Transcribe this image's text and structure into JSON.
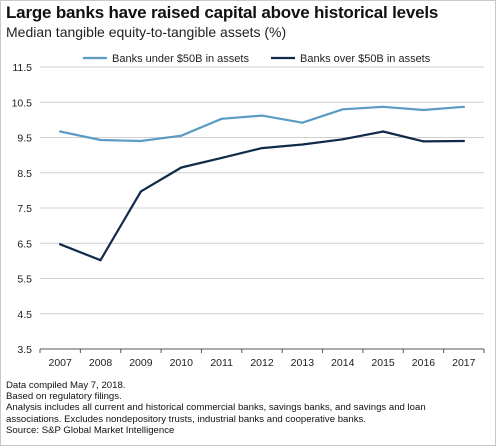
{
  "header": {
    "title": "Large banks have raised capital above historical levels",
    "subtitle": "Median tangible equity-to-tangible assets (%)"
  },
  "colors": {
    "under_50b": "#5b9bc4",
    "over_50b": "#0f2a4a",
    "grid": "#d0d0d0"
  },
  "chart_data": {
    "type": "line",
    "title": "",
    "xlabel": "",
    "ylabel": "",
    "x": [
      "2007",
      "2008",
      "2009",
      "2010",
      "2011",
      "2012",
      "2013",
      "2014",
      "2015",
      "2016",
      "2017"
    ],
    "y_ticks": [
      "11.5",
      "10.5",
      "9.5",
      "8.5",
      "7.5",
      "6.5",
      "5.5",
      "4.5",
      "3.5"
    ],
    "ylim": [
      3.5,
      11.5
    ],
    "grid": "horizontal",
    "legend_position": "top",
    "series": [
      {
        "name": "Banks under $50B in assets",
        "color": "#5b9bc4",
        "values": [
          9.67,
          9.43,
          9.4,
          9.55,
          10.03,
          10.12,
          9.92,
          10.3,
          10.37,
          10.28,
          10.37
        ]
      },
      {
        "name": "Banks over $50B in assets",
        "color": "#0f2a4a",
        "values": [
          6.47,
          6.02,
          7.97,
          8.65,
          8.92,
          9.2,
          9.3,
          9.45,
          9.67,
          9.39,
          9.4
        ]
      }
    ]
  },
  "notes": [
    "Data compiled May 7, 2018.",
    "Based on regulatory filings.",
    "Analysis includes all current and historical commercial banks, savings banks, and savings and loan",
    "associations. Excludes nondepository trusts, industrial banks and cooperative banks.",
    "Source: S&P Global Market Intelligence"
  ]
}
